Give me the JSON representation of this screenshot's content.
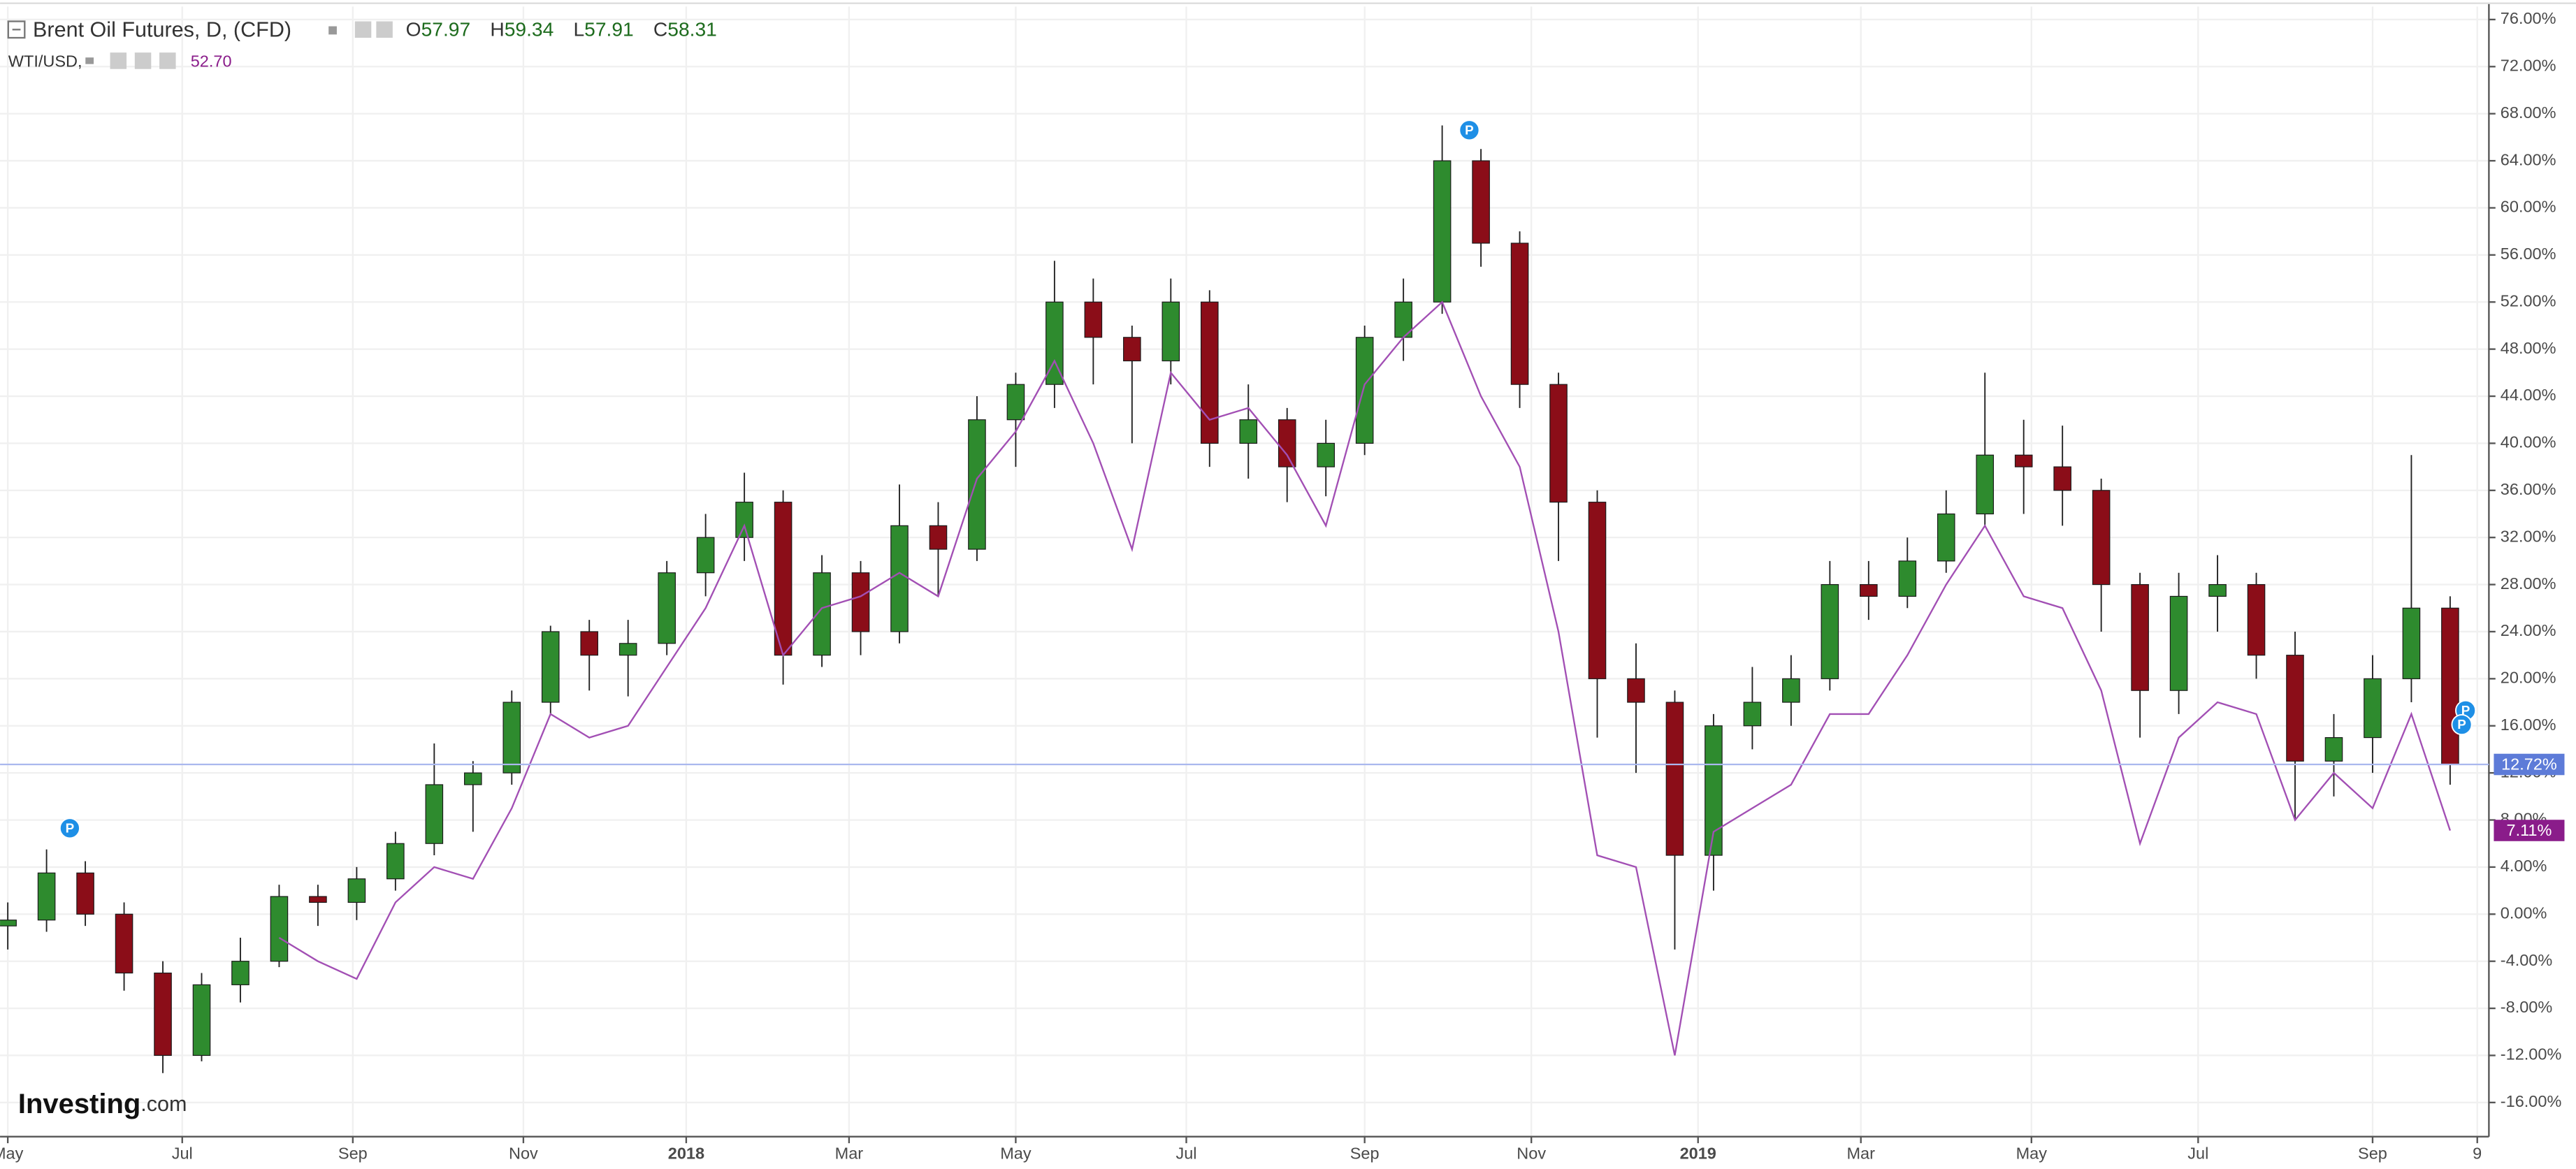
{
  "chart_data": {
    "type": "candlestick",
    "xlim": [
      -0.2,
      64
    ],
    "xticks": [
      {
        "value": 0,
        "label": "May"
      },
      {
        "value": 4.5,
        "label": "Jul"
      },
      {
        "value": 8.9,
        "label": "Sep"
      },
      {
        "value": 13.3,
        "label": "Nov"
      },
      {
        "value": 17.5,
        "label": "2018"
      },
      {
        "value": 21.7,
        "label": "Mar"
      },
      {
        "value": 26.0,
        "label": "May"
      },
      {
        "value": 30.4,
        "label": "Jul"
      },
      {
        "value": 35.0,
        "label": "Sep"
      },
      {
        "value": 39.3,
        "label": "Nov"
      },
      {
        "value": 43.6,
        "label": "2019"
      },
      {
        "value": 47.8,
        "label": "Mar"
      },
      {
        "value": 52.2,
        "label": "May"
      },
      {
        "value": 56.5,
        "label": "Jul"
      },
      {
        "value": 61.0,
        "label": "Sep"
      },
      {
        "value": 63.7,
        "label": "9"
      }
    ],
    "ylim": [
      -18.9,
      77.1
    ],
    "yticks": [
      {
        "value": -16,
        "label": "-16.00%"
      },
      {
        "value": -12,
        "label": "-12.00%"
      },
      {
        "value": -8,
        "label": "-8.00%"
      },
      {
        "value": -4,
        "label": "-4.00%"
      },
      {
        "value": 0,
        "label": "0.00%"
      },
      {
        "value": 4,
        "label": "4.00%"
      },
      {
        "value": 8,
        "label": "8.00%"
      },
      {
        "value": 12,
        "label": "12.00%"
      },
      {
        "value": 16,
        "label": "16.00%"
      },
      {
        "value": 20,
        "label": "20.00%"
      },
      {
        "value": 24,
        "label": "24.00%"
      },
      {
        "value": 28,
        "label": "28.00%"
      },
      {
        "value": 32,
        "label": "32.00%"
      },
      {
        "value": 36,
        "label": "36.00%"
      },
      {
        "value": 40,
        "label": "40.00%"
      },
      {
        "value": 44,
        "label": "44.00%"
      },
      {
        "value": 48,
        "label": "48.00%"
      },
      {
        "value": 52,
        "label": "52.00%"
      },
      {
        "value": 56,
        "label": "56.00%"
      },
      {
        "value": 60,
        "label": "60.00%"
      },
      {
        "value": 64,
        "label": "64.00%"
      },
      {
        "value": 68,
        "label": "68.00%"
      },
      {
        "value": 72,
        "label": "72.00%"
      },
      {
        "value": 76,
        "label": "76.00%"
      }
    ],
    "grid": true,
    "series": [
      {
        "name": "Brent Oil Futures, D, (CFD)",
        "type": "candlestick",
        "up_color": "#2e8b2e",
        "down_color": "#8b0d18",
        "legend_values": [
          {
            "label": "O",
            "value": "57.97"
          },
          {
            "label": "H",
            "value": "59.34"
          },
          {
            "label": "L",
            "value": "57.91"
          },
          {
            "label": "C",
            "value": "58.31"
          }
        ],
        "last_value": {
          "value": 12.72,
          "label": "12.72%"
        },
        "last_color": "#5d7bd8",
        "ohlc": [
          [
            -1,
            1,
            -3,
            -0.5
          ],
          [
            -0.5,
            5.5,
            -1.5,
            3.5
          ],
          [
            3.5,
            4.5,
            -1,
            0
          ],
          [
            0,
            1,
            -6.5,
            -5
          ],
          [
            -5,
            -4,
            -13.5,
            -12
          ],
          [
            -12,
            -5,
            -12.5,
            -6
          ],
          [
            -6,
            -2,
            -7.5,
            -4
          ],
          [
            -4,
            2.5,
            -4.5,
            1.5
          ],
          [
            1.5,
            2.5,
            -1,
            1
          ],
          [
            1,
            4,
            -0.5,
            3
          ],
          [
            3,
            7,
            2,
            6
          ],
          [
            6,
            14.5,
            5,
            11
          ],
          [
            11,
            13,
            7,
            12
          ],
          [
            12,
            19,
            11,
            18
          ],
          [
            18,
            24.5,
            17,
            24
          ],
          [
            24,
            25,
            19,
            22
          ],
          [
            22,
            25,
            18.5,
            23
          ],
          [
            23,
            30,
            22,
            29
          ],
          [
            29,
            34,
            27,
            32
          ],
          [
            32,
            37.5,
            30,
            35
          ],
          [
            35,
            36,
            19.5,
            22
          ],
          [
            22,
            30.5,
            21,
            29
          ],
          [
            29,
            30,
            22,
            24
          ],
          [
            24,
            36.5,
            23,
            33
          ],
          [
            33,
            35,
            27,
            31
          ],
          [
            31,
            44,
            30,
            42
          ],
          [
            42,
            46,
            38,
            45
          ],
          [
            45,
            55.5,
            43,
            52
          ],
          [
            52,
            54,
            45,
            49
          ],
          [
            49,
            50,
            40,
            47
          ],
          [
            47,
            54,
            45,
            52
          ],
          [
            52,
            53,
            38,
            40
          ],
          [
            40,
            45,
            37,
            42
          ],
          [
            42,
            43,
            35,
            38
          ],
          [
            38,
            42,
            35.5,
            40
          ],
          [
            40,
            50,
            39,
            49
          ],
          [
            49,
            54,
            47,
            52
          ],
          [
            52,
            67,
            51,
            64
          ],
          [
            64,
            65,
            55,
            57
          ],
          [
            57,
            58,
            43,
            45
          ],
          [
            45,
            46,
            30,
            35
          ],
          [
            35,
            36,
            15,
            20
          ],
          [
            20,
            23,
            12,
            18
          ],
          [
            18,
            19,
            -3,
            5
          ],
          [
            5,
            17,
            2,
            16
          ],
          [
            16,
            21,
            14,
            18
          ],
          [
            18,
            22,
            16,
            20
          ],
          [
            20,
            30,
            19,
            28
          ],
          [
            28,
            30,
            25,
            27
          ],
          [
            27,
            32,
            26,
            30
          ],
          [
            30,
            36,
            29,
            34
          ],
          [
            34,
            46,
            33,
            39
          ],
          [
            39,
            42,
            34,
            38
          ],
          [
            38,
            41.5,
            33,
            36
          ],
          [
            36,
            37,
            24,
            28
          ],
          [
            28,
            29,
            15,
            19
          ],
          [
            19,
            29,
            17,
            27
          ],
          [
            27,
            30.5,
            24,
            28
          ],
          [
            28,
            29,
            20,
            22
          ],
          [
            22,
            24,
            8,
            13
          ],
          [
            13,
            17,
            10,
            15
          ],
          [
            15,
            22,
            12,
            20
          ],
          [
            20,
            39,
            18,
            26
          ],
          [
            26,
            27,
            11,
            12.7
          ]
        ]
      },
      {
        "name": "WTI/USD,",
        "type": "line",
        "color": "#a24fb4",
        "legend_value": "52.70",
        "legend_color": "#8a1c8a",
        "last_value": {
          "value": 7.11,
          "label": "7.11%"
        },
        "last_color": "#8a1c8a",
        "values": [
          null,
          null,
          null,
          null,
          null,
          null,
          null,
          -2,
          -4,
          -5.5,
          1,
          4,
          3,
          9,
          17,
          15,
          16,
          21,
          26,
          33,
          22,
          26,
          27,
          29,
          27,
          37,
          41,
          47,
          40,
          31,
          46,
          42,
          43,
          39,
          33,
          45,
          49,
          52,
          44,
          38,
          24,
          5,
          4,
          -12,
          7,
          9,
          11,
          17,
          17,
          22,
          28,
          33,
          27,
          26,
          19,
          6,
          15,
          18,
          17,
          8,
          12,
          9,
          17,
          7.1
        ]
      }
    ],
    "annotations": [
      {
        "text": "P",
        "x": 1.6,
        "y": 7.3
      },
      {
        "text": "P",
        "x": 37.7,
        "y": 66.6
      },
      {
        "text": "P",
        "x": 63.4,
        "y": 17.3
      },
      {
        "text": "P",
        "x": 63.3,
        "y": 16.1
      }
    ],
    "logo": [
      "Investing",
      ".com"
    ]
  }
}
